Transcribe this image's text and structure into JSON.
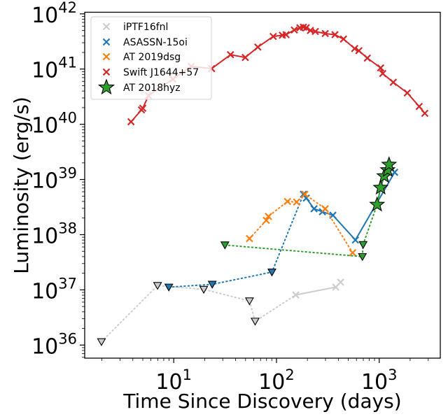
{
  "chart_data": {
    "type": "scatter",
    "title": "",
    "xlabel": "Time Since Discovery (days)",
    "ylabel": "Luminosity (erg/s)",
    "xscale": "log",
    "yscale": "log",
    "xlim": [
      1.36,
      3930
    ],
    "ylim": [
      5.8e+35,
      1.07e+42
    ],
    "grid": false,
    "legend_position": "top-left",
    "x_ticks": [
      {
        "value": 10,
        "base": "10",
        "exp": "1"
      },
      {
        "value": 100,
        "base": "10",
        "exp": "2"
      },
      {
        "value": 1000,
        "base": "10",
        "exp": "3"
      }
    ],
    "y_ticks": [
      {
        "value": 1e+36,
        "base": "10",
        "exp": "36"
      },
      {
        "value": 1e+37,
        "base": "10",
        "exp": "37"
      },
      {
        "value": 1e+38,
        "base": "10",
        "exp": "38"
      },
      {
        "value": 1e+39,
        "base": "10",
        "exp": "39"
      },
      {
        "value": 1e+40,
        "base": "10",
        "exp": "40"
      },
      {
        "value": 1e+41,
        "base": "10",
        "exp": "41"
      },
      {
        "value": 1e+42,
        "base": "10",
        "exp": "42"
      }
    ],
    "series": [
      {
        "name": "iPTF16fnl",
        "color": "#cccccc",
        "marker": "x",
        "detections": {
          "x": [
            154,
            378,
            421
          ],
          "y": [
            8.1e+36,
            1.12e+37,
            1.38e+37
          ]
        },
        "upper_limits": {
          "x": [
            1.98,
            6.96,
            19.6,
            54.6,
            62
          ],
          "y": [
            1.15e+36,
            1.2e+37,
            1.02e+37,
            6.3e+36,
            2.7e+36
          ]
        },
        "limit_path_x": [
          1.98,
          6.96,
          19.6,
          54.6,
          62,
          154
        ],
        "limit_path_y": [
          1.15e+36,
          1.2e+37,
          1.02e+37,
          6.3e+36,
          2.7e+36,
          8.1e+36
        ]
      },
      {
        "name": "ASASSN-15oi",
        "color": "#1f77b4",
        "marker": "x",
        "detections": {
          "x": [
            183,
            195,
            232,
            280,
            354,
            586,
            1413
          ],
          "y": [
            5.4e+38,
            4.6e+38,
            2.95e+38,
            2.6e+38,
            2.25e+38,
            8e+37,
            1.35e+39
          ]
        },
        "upper_limits": {
          "x": [
            8.96,
            23.7,
            90.3
          ],
          "y": [
            1.12e+37,
            1.26e+37,
            2.1e+37
          ]
        },
        "limit_path_x": [
          8.96,
          23.7,
          90.3,
          183
        ],
        "limit_path_y": [
          1.12e+37,
          1.26e+37,
          2.1e+37,
          5.4e+38
        ]
      },
      {
        "name": "AT 2019dsg",
        "color": "#ff7f0e",
        "marker": "x",
        "detections": {
          "x": [
            54.6,
            79.6,
            83.5,
            128,
            157,
            189,
            298,
            551
          ],
          "y": [
            8.5e+37,
            1.82e+38,
            2.14e+38,
            4e+38,
            3.9e+38,
            5.4e+38,
            2.95e+38,
            4.7e+37
          ]
        },
        "upper_limits": {
          "x": [],
          "y": []
        },
        "dotted_connect": true
      },
      {
        "name": "Swift J1644+57",
        "color": "#d62728",
        "marker": "x",
        "detections": {
          "x": [
            3.84,
            4.85,
            5.0,
            5.68,
            9.8,
            14.8,
            23.4,
            35.7,
            49.7,
            65.9,
            93,
            114,
            124,
            149,
            169,
            183,
            195,
            214,
            239,
            298,
            371,
            449,
            577,
            634,
            766,
            1032,
            1082,
            1370,
            1876,
            2449,
            2777
          ],
          "y": [
            1.11e+40,
            1.82e+40,
            1.95e+40,
            3.3e+40,
            6.6e+40,
            1.12e+41,
            1.02e+41,
            1.82e+41,
            1.62e+41,
            2.5e+41,
            3.9e+41,
            4.1e+41,
            4.2e+41,
            5.1e+41,
            5.6e+41,
            5.75e+41,
            5.6e+41,
            5e+41,
            4.8e+41,
            4.4e+41,
            4.2e+41,
            3.5e+41,
            2.35e+41,
            2.15e+41,
            1.58e+41,
            1.05e+41,
            8.3e+40,
            5.75e+40,
            3.7e+40,
            2.1e+40,
            1.58e+40
          ]
        },
        "upper_limits": {
          "x": [],
          "y": []
        }
      },
      {
        "name": "AT 2018hyz",
        "color": "#2ca02c",
        "marker": "star",
        "detections": {
          "x": [
            953,
            1032,
            1117,
            1208,
            1247
          ],
          "y": [
            3.5e+38,
            7.1e+38,
            1.15e+39,
            1.48e+39,
            1.86e+39
          ]
        },
        "upper_limits": {
          "x": [
            31.5,
            697,
            686
          ],
          "y": [
            6.5e+37,
            6.6e+37,
            4e+37
          ]
        },
        "limit_path_x": [
          31.5,
          686,
          697,
          953
        ],
        "limit_path_y": [
          6.5e+37,
          4e+37,
          6.6e+37,
          3.5e+38
        ]
      }
    ]
  }
}
